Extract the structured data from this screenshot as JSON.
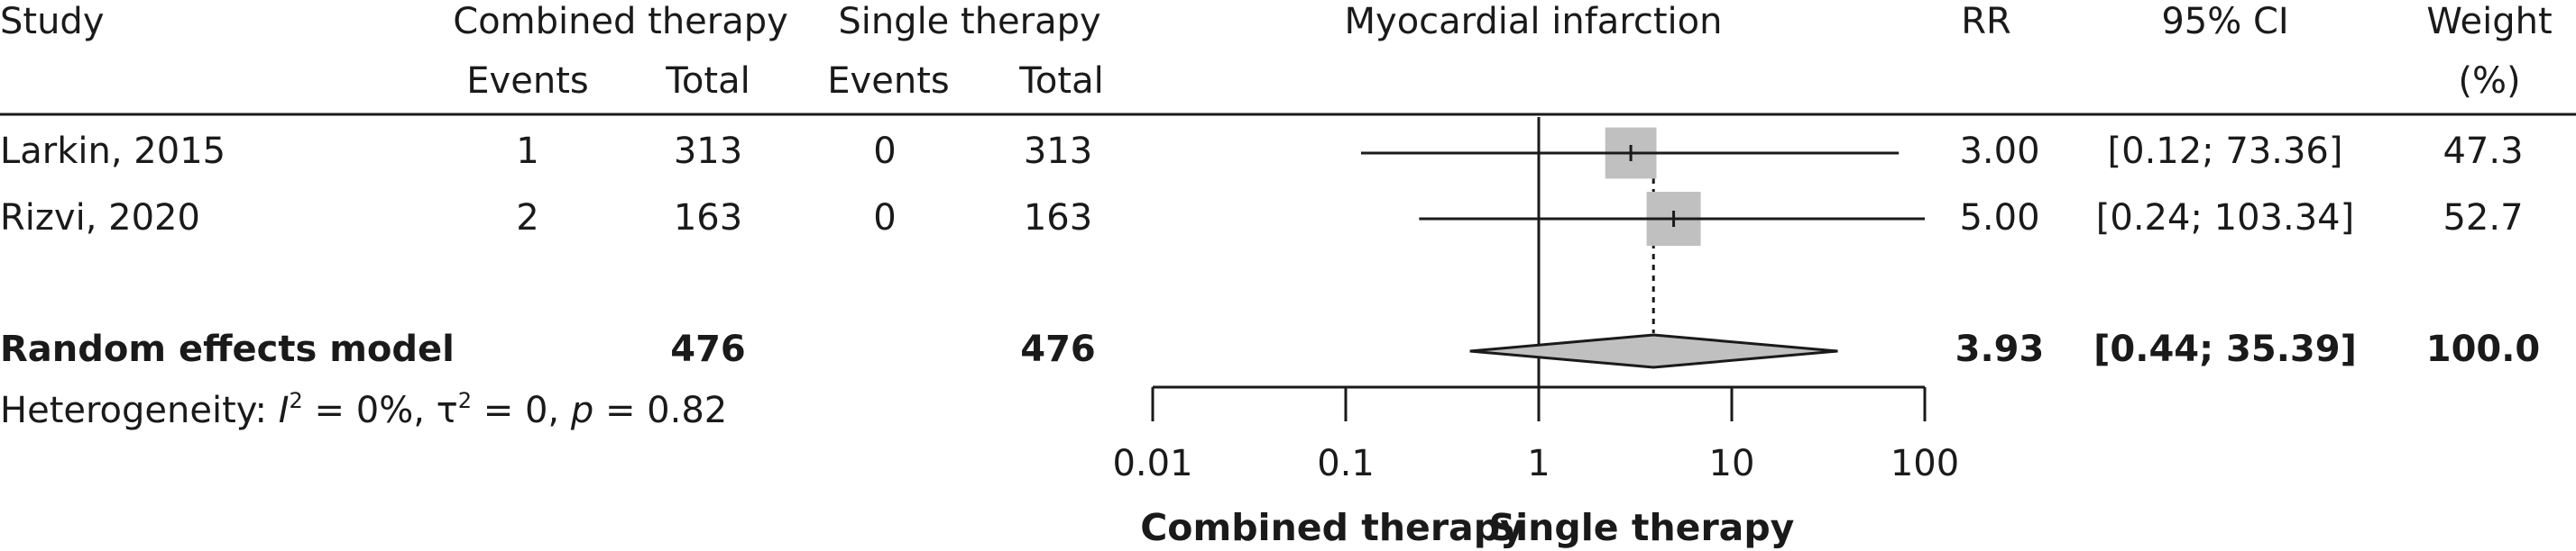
{
  "headers": {
    "study": "Study",
    "group1": "Combined therapy",
    "group2": "Single therapy",
    "outcome": "Myocardial infarction",
    "rr": "RR",
    "ci": "95% CI",
    "weight_line1": "Weight",
    "weight_line2": "(%)",
    "events1": "Events",
    "total1": "Total",
    "events2": "Events",
    "total2": "Total"
  },
  "studies": [
    {
      "study": "Larkin, 2015",
      "events1": "1",
      "total1": "313",
      "events2": "0",
      "total2": "313",
      "rr": "3.00",
      "ci": "[0.12; 73.36]",
      "weight": "47.3"
    },
    {
      "study": "Rizvi, 2020",
      "events1": "2",
      "total1": "163",
      "events2": "0",
      "total2": "163",
      "rr": "5.00",
      "ci": "[0.24; 103.34]",
      "weight": "52.7"
    }
  ],
  "pooled": {
    "label": "Random effects model",
    "total1": "476",
    "total2": "476",
    "rr": "3.93",
    "ci": "[0.44; 35.39]",
    "weight": "100.0"
  },
  "heterogeneity": {
    "prefix": "Heterogeneity: ",
    "i_symbol": "I",
    "i_sup": "2",
    "i_text": " = 0%, τ",
    "tau_sup": "2",
    "tau_text": " = 0, ",
    "p_symbol": "p",
    "p_text": " = 0.82"
  },
  "axis_labels": {
    "left": "Combined therapy",
    "right": "Single therapy"
  },
  "colors": {
    "box": "#c0c0c0",
    "diamond": "#c0c0c0",
    "line": "#1a1a1a"
  },
  "chart_data": {
    "type": "forest",
    "scale": "log",
    "xlim": [
      0.01,
      100
    ],
    "ticks": [
      0.01,
      0.1,
      1,
      10,
      100
    ],
    "tick_labels": [
      "0.01",
      "0.1",
      "1",
      "10",
      "100"
    ],
    "null_value": 1,
    "studies": [
      {
        "name": "Larkin, 2015",
        "rr": 3.0,
        "lower": 0.12,
        "upper": 73.36,
        "weight": 47.3
      },
      {
        "name": "Rizvi, 2020",
        "rr": 5.0,
        "lower": 0.24,
        "upper": 103.34,
        "weight": 52.7
      }
    ],
    "pooled": {
      "name": "Random effects model",
      "rr": 3.93,
      "lower": 0.44,
      "upper": 35.39
    }
  }
}
